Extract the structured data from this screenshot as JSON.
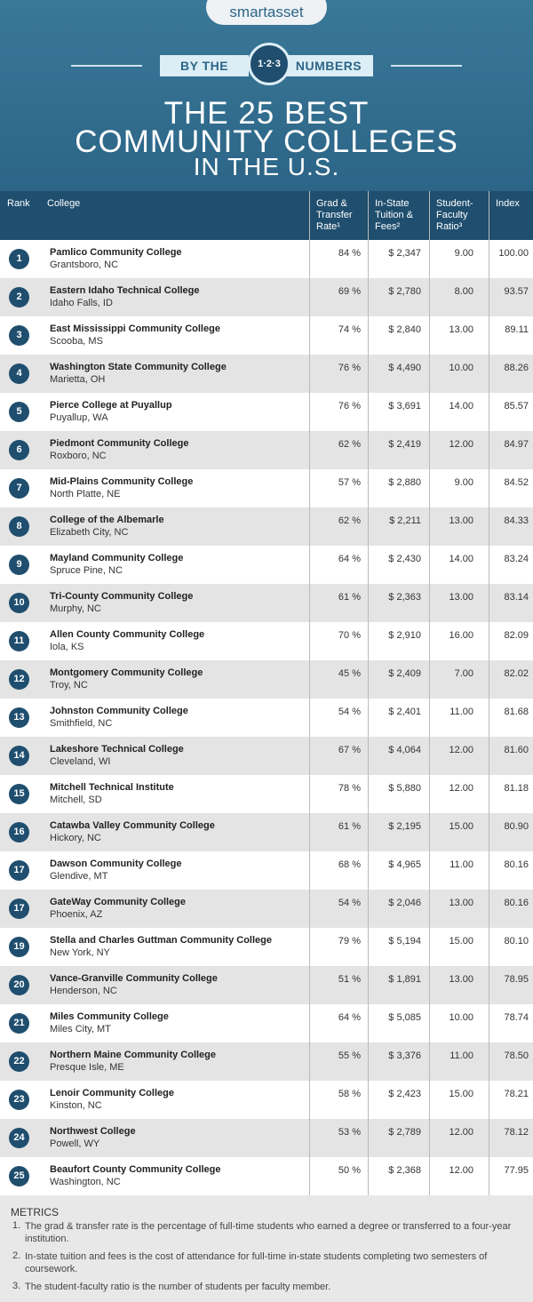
{
  "header": {
    "brand": "smartasset",
    "ribbon_left": "BY THE",
    "badge": "1·2·3",
    "ribbon_right": "NUMBERS",
    "title": [
      "THE 25 BEST",
      "COMMUNITY COLLEGES",
      "IN THE U.S."
    ]
  },
  "table": {
    "columns": [
      "Rank",
      "College",
      "Grad & Transfer Rate¹",
      "In-State Tuition & Fees²",
      "Student-Faculty Ratio³",
      "Index"
    ],
    "rows": [
      [
        "1",
        "Pamlico Community College",
        "Grantsboro, NC",
        "84 %",
        "$ 2,347",
        "9.00",
        "100.00"
      ],
      [
        "2",
        "Eastern Idaho Technical College",
        "Idaho Falls, ID",
        "69 %",
        "$ 2,780",
        "8.00",
        "93.57"
      ],
      [
        "3",
        "East Mississippi Community College",
        "Scooba, MS",
        "74 %",
        "$ 2,840",
        "13.00",
        "89.11"
      ],
      [
        "4",
        "Washington State Community College",
        "Marietta, OH",
        "76 %",
        "$ 4,490",
        "10.00",
        "88.26"
      ],
      [
        "5",
        "Pierce College at Puyallup",
        "Puyallup, WA",
        "76 %",
        "$ 3,691",
        "14.00",
        "85.57"
      ],
      [
        "6",
        "Piedmont Community College",
        "Roxboro, NC",
        "62 %",
        "$ 2,419",
        "12.00",
        "84.97"
      ],
      [
        "7",
        "Mid-Plains Community College",
        "North Platte, NE",
        "57 %",
        "$ 2,880",
        "9.00",
        "84.52"
      ],
      [
        "8",
        "College of the Albemarle",
        "Elizabeth City, NC",
        "62 %",
        "$ 2,211",
        "13.00",
        "84.33"
      ],
      [
        "9",
        "Mayland Community College",
        "Spruce Pine, NC",
        "64 %",
        "$ 2,430",
        "14.00",
        "83.24"
      ],
      [
        "10",
        "Tri-County Community College",
        "Murphy, NC",
        "61 %",
        "$ 2,363",
        "13.00",
        "83.14"
      ],
      [
        "11",
        "Allen County Community College",
        "Iola, KS",
        "70 %",
        "$ 2,910",
        "16.00",
        "82.09"
      ],
      [
        "12",
        "Montgomery Community College",
        "Troy, NC",
        "45 %",
        "$ 2,409",
        "7.00",
        "82.02"
      ],
      [
        "13",
        "Johnston Community College",
        "Smithfield, NC",
        "54 %",
        "$ 2,401",
        "11.00",
        "81.68"
      ],
      [
        "14",
        "Lakeshore Technical College",
        "Cleveland, WI",
        "67 %",
        "$ 4,064",
        "12.00",
        "81.60"
      ],
      [
        "15",
        "Mitchell Technical Institute",
        "Mitchell, SD",
        "78 %",
        "$ 5,880",
        "12.00",
        "81.18"
      ],
      [
        "16",
        "Catawba Valley Community College",
        "Hickory, NC",
        "61 %",
        "$ 2,195",
        "15.00",
        "80.90"
      ],
      [
        "17",
        "Dawson Community College",
        "Glendive, MT",
        "68 %",
        "$ 4,965",
        "11.00",
        "80.16"
      ],
      [
        "17",
        "GateWay Community College",
        "Phoenix, AZ",
        "54 %",
        "$ 2,046",
        "13.00",
        "80.16"
      ],
      [
        "19",
        "Stella and Charles Guttman Community College",
        "New York, NY",
        "79 %",
        "$ 5,194",
        "15.00",
        "80.10"
      ],
      [
        "20",
        "Vance-Granville Community College",
        "Henderson, NC",
        "51 %",
        "$ 1,891",
        "13.00",
        "78.95"
      ],
      [
        "21",
        "Miles Community College",
        "Miles City, MT",
        "64 %",
        "$ 5,085",
        "10.00",
        "78.74"
      ],
      [
        "22",
        "Northern Maine Community College",
        "Presque Isle, ME",
        "55 %",
        "$ 3,376",
        "11.00",
        "78.50"
      ],
      [
        "23",
        "Lenoir Community College",
        "Kinston, NC",
        "58 %",
        "$ 2,423",
        "15.00",
        "78.21"
      ],
      [
        "24",
        "Northwest College",
        "Powell, WY",
        "53 %",
        "$ 2,789",
        "12.00",
        "78.12"
      ],
      [
        "25",
        "Beaufort County Community College",
        "Washington, NC",
        "50 %",
        "$ 2,368",
        "12.00",
        "77.95"
      ]
    ]
  },
  "metrics": {
    "title": "METRICS",
    "items": [
      {
        "marker": "1.",
        "text": "The grad & transfer rate is the percentage of full-time students who earned a degree or transferred to a four-year institution."
      },
      {
        "marker": "2.",
        "text": "In-state tuition and fees is the cost of attendance for full-time in-state students completing two semesters of coursework."
      },
      {
        "marker": "3.",
        "text": "The student-faculty ratio is the number of students per faculty member."
      }
    ]
  }
}
